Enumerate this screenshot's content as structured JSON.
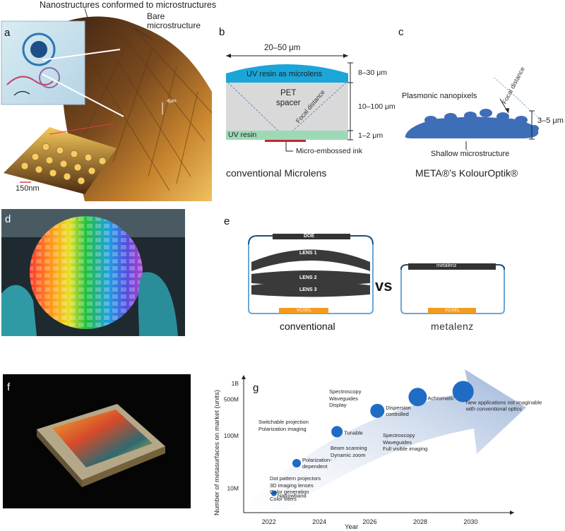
{
  "panel_labels": {
    "a": "a",
    "b": "b",
    "c": "c",
    "d": "d",
    "e": "e",
    "f": "f",
    "g": "g"
  },
  "panel_a": {
    "label_nano": "Nanostructures conformed to microstructures",
    "label_bare_1": "Bare",
    "label_bare_2": "microstructure",
    "scale_4um": "4μm",
    "scale_150nm": "150nm"
  },
  "panel_b": {
    "width_label": "20–50 μm",
    "lens_label": "UV resin as microlens",
    "lens_dim": "8–30 μm",
    "spacer_line1": "PET",
    "spacer_line2": "spacer",
    "focal": "Focal distance",
    "spacer_dim": "10–100 μm",
    "base_label": "UV resin",
    "base_dim": "1–2 μm",
    "ink_label": "Micro-embossed ink",
    "caption": "conventional Microlens"
  },
  "panel_c": {
    "nanopixels": "Plasmonic nanopixels",
    "focal": "Focal distance",
    "dim": "3–5 μm",
    "microstructure": "Shallow microstructure",
    "caption": "META®’s KolourOptik®"
  },
  "panel_e": {
    "doe": "DOE",
    "lens1": "LENS 1",
    "lens2": "LENS 2",
    "lens3": "LENS 3",
    "vcsel_left": "VCSEL",
    "vcsel_right": "VCSEL",
    "brand_plate": "metalenz",
    "vs": "vs",
    "caption_left": "conventional",
    "caption_right": "metalenz"
  },
  "colors": {
    "lens_blue": "#1aa6d8",
    "spacer_gray": "#d9d9d9",
    "base_green": "#9ed9b5",
    "ink_red": "#c0282e",
    "metasurface_blue": "#3f6eb8",
    "lens_dark": "#3a3a3a",
    "vcsel_orange": "#f39b1f",
    "bubble_blue": "#1f6cc4",
    "arrow_light": "#c9d6ea"
  },
  "chart_data": {
    "type": "scatter",
    "title": "",
    "xlabel": "Year",
    "ylabel": "Number of metasurfaces on market (units)",
    "x_ticks": [
      "2022",
      "2024",
      "2026",
      "2028",
      "2030"
    ],
    "y_ticks": [
      "10M",
      "100M",
      "500M",
      "1B"
    ],
    "y_scale": "log",
    "xlim": [
      2021,
      2031.5
    ],
    "points": [
      {
        "year": 2022.2,
        "units_m": 8,
        "label": "Narrowband"
      },
      {
        "year": 2023.1,
        "units_m": 30,
        "label": "Polarization-dependent"
      },
      {
        "year": 2024.7,
        "units_m": 120,
        "label": "Tunable"
      },
      {
        "year": 2026.3,
        "units_m": 300,
        "label": "Dispersion controlled"
      },
      {
        "year": 2027.9,
        "units_m": 550,
        "label": "Achromatic"
      },
      {
        "year": 2029.7,
        "units_m": 700,
        "label": "New applications not imaginable with conventional optics"
      }
    ],
    "annotations": [
      {
        "lines": [
          "Dot pattern projectors",
          "3D imaging lenses",
          "Color generation",
          "Color filters"
        ]
      },
      {
        "lines": [
          "Switchable projection",
          "Polarization imaging"
        ]
      },
      {
        "lines": [
          "Beam scanning",
          "Dynamic zoom"
        ]
      },
      {
        "lines": [
          "Spectroscopy",
          "Waveguides",
          "Display"
        ]
      },
      {
        "lines": [
          "Spectroscopy",
          "Waveguides",
          "Full visible imaging"
        ]
      }
    ],
    "grid": false,
    "legend": "none"
  }
}
